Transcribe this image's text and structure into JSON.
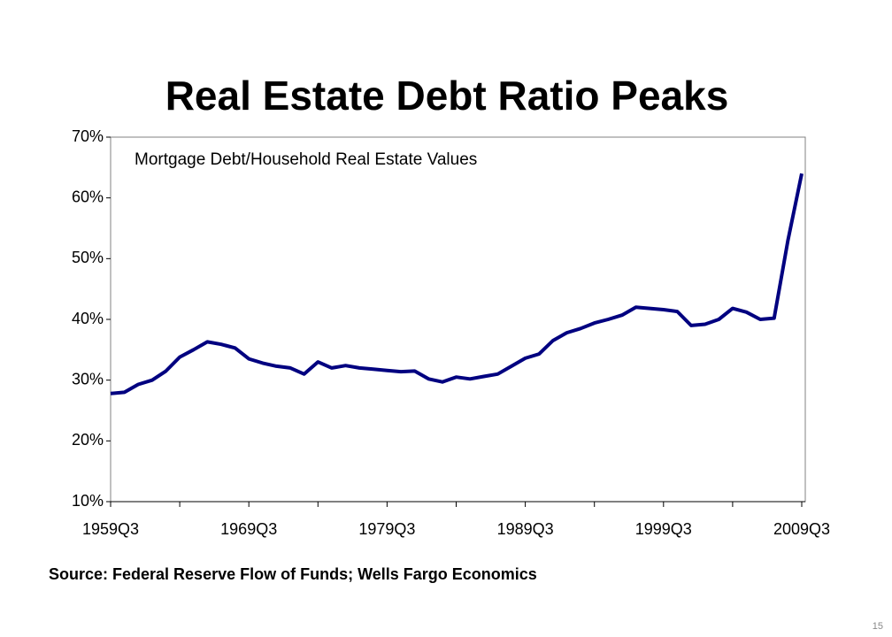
{
  "chart_data": {
    "type": "line",
    "title": "Real Estate Debt Ratio Peaks",
    "annotation": "Mortgage Debt/Household Real Estate Values",
    "source": "Source: Federal Reserve Flow of Funds; Wells Fargo Economics",
    "categories": [
      "1959Q3",
      null,
      null,
      null,
      null,
      null,
      null,
      null,
      null,
      null,
      "1969Q3",
      null,
      null,
      null,
      null,
      null,
      null,
      null,
      null,
      null,
      "1979Q3",
      null,
      null,
      null,
      null,
      null,
      null,
      null,
      null,
      null,
      "1989Q3",
      null,
      null,
      null,
      null,
      null,
      null,
      null,
      null,
      null,
      "1999Q3",
      null,
      null,
      null,
      null,
      null,
      null,
      null,
      null,
      null,
      "2009Q3"
    ],
    "series": [
      {
        "name": "Mortgage Debt/Household Real Estate Values",
        "color": "#000080",
        "values": [
          27.8,
          28.0,
          29.3,
          30.0,
          31.5,
          33.8,
          35.0,
          36.3,
          35.9,
          35.3,
          33.5,
          32.8,
          32.3,
          32.0,
          31.0,
          33.0,
          32.0,
          32.4,
          32.0,
          31.8,
          31.6,
          31.4,
          31.5,
          30.2,
          29.7,
          30.5,
          30.2,
          30.6,
          31.0,
          32.3,
          33.6,
          34.3,
          36.5,
          37.8,
          38.5,
          39.4,
          40.0,
          40.7,
          42.0,
          41.8,
          41.6,
          41.3,
          39.0,
          39.2,
          40.0,
          41.8,
          41.2,
          40.0,
          40.2,
          53.0,
          64.0
        ]
      }
    ],
    "ylim": [
      10,
      70
    ],
    "yticks": [
      {
        "value": 10,
        "label": "10%"
      },
      {
        "value": 20,
        "label": "20%"
      },
      {
        "value": 30,
        "label": "30%"
      },
      {
        "value": 40,
        "label": "40%"
      },
      {
        "value": 50,
        "label": "50%"
      },
      {
        "value": 60,
        "label": "60%"
      },
      {
        "value": 70,
        "label": "70%"
      }
    ],
    "grid": false
  },
  "page_number": "15"
}
